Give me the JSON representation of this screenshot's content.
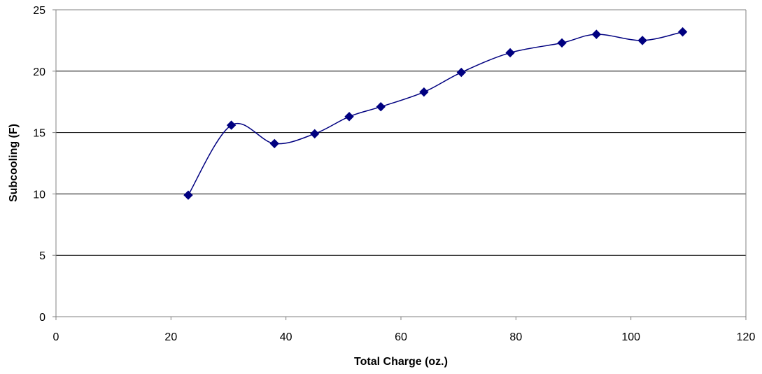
{
  "chart_data": {
    "type": "line",
    "title": "",
    "xlabel": "Total Charge (oz.)",
    "ylabel": "Subcooling (F)",
    "xlim": [
      0,
      120
    ],
    "ylim": [
      0,
      25
    ],
    "xticks": [
      0,
      20,
      40,
      60,
      80,
      100,
      120
    ],
    "yticks": [
      0,
      5,
      10,
      15,
      20,
      25
    ],
    "grid": "horizontal",
    "legend": "none",
    "marker": "diamond",
    "line_style": "smoothed",
    "colors": {
      "series": "#000080",
      "grid": "#000000",
      "axis": "#808080"
    },
    "series": [
      {
        "x": [
          23,
          30.5,
          38,
          45,
          51,
          56.5,
          64,
          70.5,
          79,
          88,
          94,
          102,
          109
        ],
        "y": [
          9.9,
          15.6,
          14.1,
          14.9,
          16.3,
          17.1,
          18.3,
          19.9,
          21.5,
          22.3,
          23.0,
          22.5,
          23.2
        ]
      }
    ]
  }
}
